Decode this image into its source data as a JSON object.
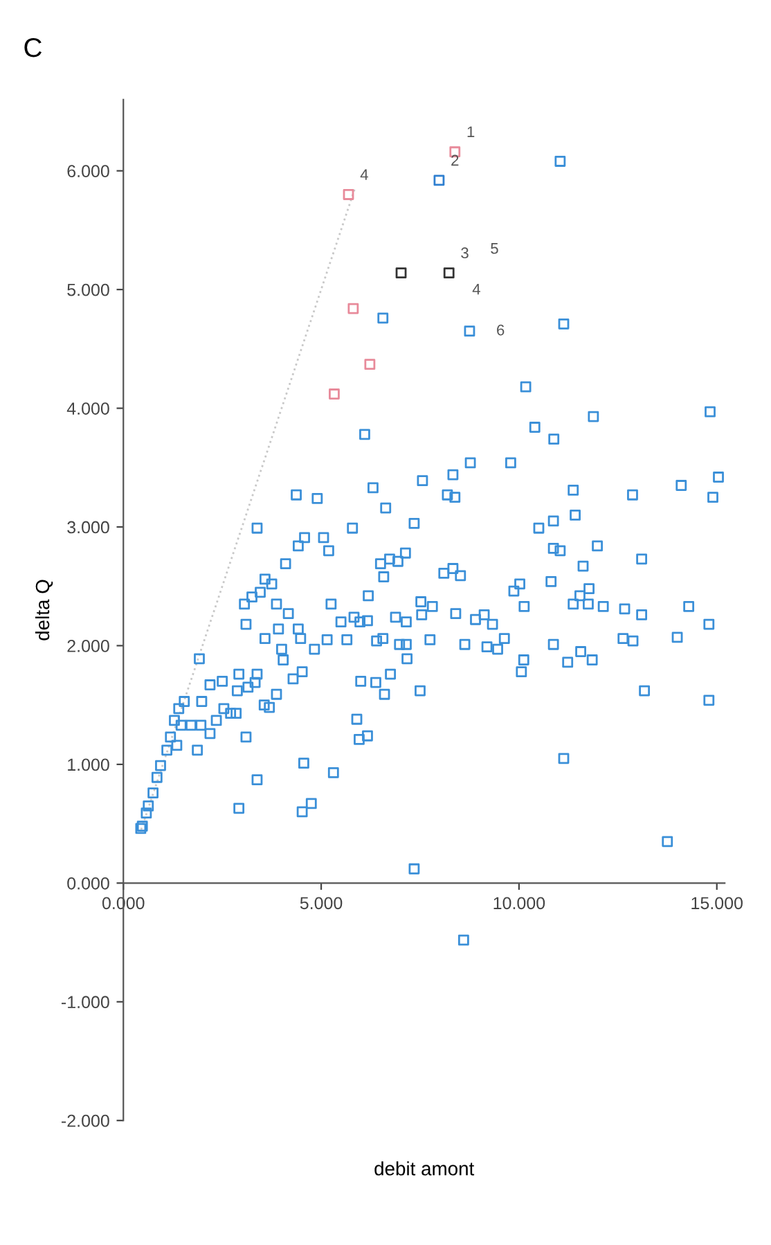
{
  "chart_data": {
    "type": "scatter",
    "xlabel": "debit amont",
    "ylabel": "delta Q",
    "marker": "square",
    "grid": false,
    "xlim": [
      0,
      15.2
    ],
    "ylim": [
      -2,
      6.6
    ],
    "xticks": [
      {
        "value": 0,
        "label": "0.000"
      },
      {
        "value": 5,
        "label": "5.000"
      },
      {
        "value": 10,
        "label": "10.000"
      },
      {
        "value": 15,
        "label": "15.000"
      }
    ],
    "yticks": [
      {
        "value": -2,
        "label": "-2.000"
      },
      {
        "value": -1,
        "label": "-1.000"
      },
      {
        "value": 0,
        "label": "0.000"
      },
      {
        "value": 1,
        "label": "1.000"
      },
      {
        "value": 2,
        "label": "2.000"
      },
      {
        "value": 3,
        "label": "3.000"
      },
      {
        "value": 4,
        "label": "4.000"
      },
      {
        "value": 5,
        "label": "5.000"
      },
      {
        "value": 6,
        "label": "6.000"
      }
    ],
    "annotations": [
      "C",
      {
        "text": "1",
        "x": 8.38,
        "y": 6.16
      },
      {
        "text": "2",
        "x": 7.98,
        "y": 5.92
      },
      {
        "text": "3",
        "x": 8.23,
        "y": 5.14
      },
      "4",
      "5",
      "6",
      {
        "text": "4",
        "x": 5.69,
        "y": 5.8
      }
    ],
    "series": [
      {
        "color": "#3a8fd8",
        "x": [
          14.83,
          15.04,
          14.9,
          14.8,
          14.8,
          14.29,
          14.1,
          14.0,
          13.75,
          13.1,
          13.1,
          13.17,
          12.87,
          12.88,
          12.67,
          12.63,
          12.13,
          11.98,
          11.88,
          11.85,
          11.77,
          11.75,
          11.62,
          11.54,
          11.56,
          11.37,
          11.42,
          11.37,
          11.23,
          11.13,
          11.04,
          11.13,
          10.88,
          11.04,
          10.87,
          10.87,
          10.81,
          10.87,
          10.5,
          10.4,
          10.17,
          10.13,
          10.12,
          10.06,
          10.02,
          9.87,
          9.79,
          9.63,
          9.46,
          9.33,
          9.19,
          9.12,
          8.9,
          8.63,
          8.75,
          8.77,
          8.52,
          8.33,
          8.38,
          8.19,
          8.4,
          8.33,
          8.1,
          7.81,
          7.75,
          7.52,
          7.54,
          7.5,
          7.56,
          7.35,
          7.35,
          8.6,
          7.13,
          6.94,
          7.15,
          7.15,
          7.17,
          6.98,
          6.88,
          6.63,
          6.73,
          6.58,
          6.5,
          6.56,
          6.75,
          6.6,
          6.38,
          6.4,
          6.31,
          6.1,
          6.19,
          6.17,
          6.17,
          5.98,
          6.0,
          5.9,
          5.96,
          5.79,
          5.83,
          5.65,
          5.5,
          5.31,
          5.25,
          5.19,
          5.06,
          5.15,
          4.9,
          4.83,
          4.58,
          4.42,
          4.37,
          4.56,
          4.75,
          4.52,
          4.48,
          4.52,
          4.29,
          4.42,
          6.56,
          4.1,
          4.17,
          4.04,
          4.0,
          3.92,
          3.87,
          3.87,
          3.75,
          3.69,
          3.56,
          3.58,
          3.58,
          3.46,
          3.38,
          3.38,
          3.38,
          3.33,
          3.25,
          3.1,
          3.06,
          3.15,
          3.1,
          2.92,
          2.92,
          2.88,
          2.85,
          2.71,
          2.5,
          2.54,
          2.35,
          2.19,
          2.19,
          1.98,
          1.96,
          1.87,
          1.92,
          1.71,
          1.54,
          1.46,
          1.4,
          1.35,
          1.29,
          1.19,
          1.1,
          0.94,
          0.85,
          0.75,
          0.63,
          0.58,
          0.48,
          0.44
        ],
        "values": [
          3.97,
          3.42,
          3.25,
          2.18,
          1.54,
          2.33,
          3.35,
          2.07,
          0.35,
          2.73,
          2.26,
          1.62,
          3.27,
          2.04,
          2.31,
          2.06,
          2.33,
          2.84,
          3.93,
          1.88,
          2.48,
          2.35,
          2.67,
          2.42,
          1.95,
          3.31,
          3.1,
          2.35,
          1.86,
          1.05,
          6.08,
          4.71,
          3.74,
          2.8,
          3.05,
          2.82,
          2.54,
          2.01,
          2.99,
          3.84,
          4.18,
          2.33,
          1.88,
          1.78,
          2.52,
          2.46,
          3.54,
          2.06,
          1.97,
          2.18,
          1.99,
          2.26,
          2.22,
          2.01,
          4.65,
          3.54,
          2.59,
          3.44,
          3.25,
          3.27,
          2.27,
          2.65,
          2.61,
          2.33,
          2.05,
          2.37,
          2.26,
          1.62,
          3.39,
          3.03,
          0.12,
          -0.48,
          2.78,
          2.71,
          2.2,
          2.01,
          1.89,
          2.01,
          2.24,
          3.16,
          2.73,
          2.58,
          2.69,
          2.06,
          1.76,
          1.59,
          1.69,
          2.04,
          3.33,
          3.78,
          2.42,
          2.21,
          1.24,
          2.2,
          1.7,
          1.38,
          1.21,
          2.99,
          2.24,
          2.05,
          2.2,
          0.93,
          2.35,
          2.8,
          2.91,
          2.05,
          3.24,
          1.97,
          2.91,
          2.84,
          3.27,
          1.01,
          0.67,
          0.6,
          2.06,
          1.78,
          1.72,
          2.14,
          4.76,
          2.69,
          2.27,
          1.88,
          1.97,
          2.14,
          2.35,
          1.59,
          2.52,
          1.48,
          1.5,
          2.06,
          2.56,
          2.45,
          2.99,
          0.87,
          1.76,
          1.69,
          2.41,
          2.18,
          2.35,
          1.65,
          1.23,
          0.63,
          1.76,
          1.62,
          1.43,
          1.43,
          1.7,
          1.47,
          1.37,
          1.26,
          1.67,
          1.53,
          1.33,
          1.12,
          1.89,
          1.33,
          1.53,
          1.33,
          1.47,
          1.16,
          1.37,
          1.23,
          1.12,
          0.99,
          0.89,
          0.76,
          0.65,
          0.59,
          0.48,
          0.46
        ]
      },
      {
        "color": "#e88a9a",
        "x": [
          6.23,
          5.81,
          5.69,
          5.33,
          8.38
        ],
        "values": [
          4.37,
          4.84,
          5.8,
          4.12,
          6.16
        ]
      },
      {
        "color": "#333333",
        "x": [
          8.23,
          7.02
        ],
        "values": [
          5.14,
          5.14
        ]
      },
      {
        "color": "#2f7fd0",
        "x": [
          7.98
        ],
        "values": [
          5.92
        ]
      },
      {
        "type": "line",
        "marker": "none",
        "color": "#c8c8c8",
        "line_style": "dotted",
        "x": [
          0.45,
          5.85
        ],
        "values": [
          0.45,
          5.85
        ]
      }
    ]
  }
}
